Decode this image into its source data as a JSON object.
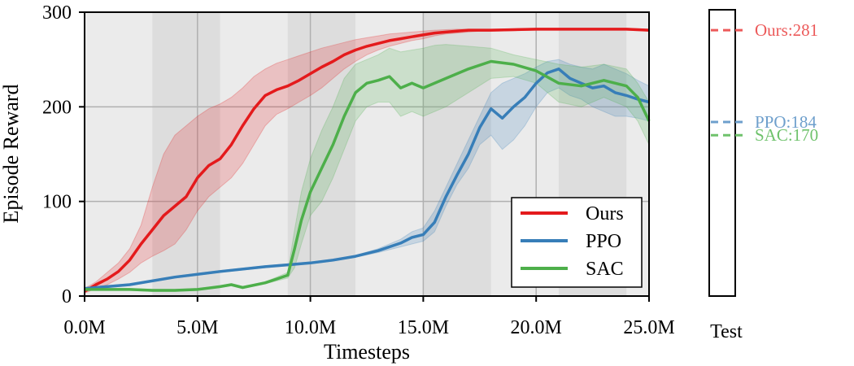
{
  "chart_data": {
    "type": "line",
    "xlabel": "Timesteps",
    "ylabel": "Episode Reward",
    "xlim": [
      0,
      25
    ],
    "ylim": [
      0,
      300
    ],
    "x_ticks": [
      0,
      5,
      10,
      15,
      20,
      25
    ],
    "x_tick_labels": [
      "0.0M",
      "5.0M",
      "10.0M",
      "15.0M",
      "20.0M",
      "25.0M"
    ],
    "y_ticks": [
      0,
      100,
      200,
      300
    ],
    "y_tick_labels": [
      "0",
      "100",
      "200",
      "300"
    ],
    "grid": true,
    "legend_position": "lower-right",
    "shaded_x_bands": [
      [
        3,
        6
      ],
      [
        9,
        12
      ],
      [
        15,
        18
      ],
      [
        21,
        24
      ]
    ],
    "series": [
      {
        "name": "Ours",
        "color": "#e41a1c",
        "x": [
          0,
          0.5,
          1,
          1.5,
          2,
          2.5,
          3,
          3.5,
          4,
          4.5,
          5,
          5.5,
          6,
          6.5,
          7,
          7.5,
          8,
          8.5,
          9,
          9.5,
          10,
          10.5,
          11,
          11.5,
          12,
          12.5,
          13,
          13.5,
          14,
          14.5,
          15,
          15.5,
          16,
          16.5,
          17,
          17.5,
          18,
          19,
          20,
          21,
          22,
          23,
          24,
          25
        ],
        "mean": [
          5,
          12,
          18,
          26,
          38,
          55,
          70,
          85,
          95,
          105,
          125,
          138,
          145,
          160,
          180,
          198,
          212,
          218,
          222,
          228,
          235,
          242,
          248,
          255,
          260,
          264,
          267,
          270,
          272,
          274,
          276,
          278,
          279,
          280,
          281,
          281,
          281,
          281.5,
          282,
          282,
          282,
          282,
          282,
          281
        ],
        "upper": [
          8,
          15,
          25,
          35,
          50,
          75,
          115,
          150,
          170,
          180,
          190,
          198,
          203,
          210,
          220,
          232,
          240,
          246,
          250,
          254,
          258,
          262,
          265,
          268,
          271,
          273,
          275,
          277,
          278,
          279,
          280,
          281,
          281.5,
          282,
          282,
          282,
          282,
          282.5,
          283,
          283,
          283,
          283,
          283,
          282
        ],
        "lower": [
          3,
          8,
          12,
          18,
          25,
          35,
          42,
          48,
          55,
          70,
          90,
          105,
          115,
          125,
          140,
          160,
          180,
          192,
          198,
          205,
          212,
          220,
          230,
          240,
          248,
          255,
          260,
          264,
          267,
          270,
          272,
          275,
          277,
          278,
          279,
          280,
          280,
          280.5,
          281,
          281,
          281,
          281,
          281,
          280
        ]
      },
      {
        "name": "PPO",
        "color": "#377eb8",
        "x": [
          0,
          2,
          4,
          6,
          8,
          9,
          10,
          11,
          12,
          13,
          14,
          14.5,
          15,
          15.5,
          16,
          16.5,
          17,
          17.5,
          18,
          18.5,
          19,
          19.5,
          20,
          20.5,
          21,
          21.5,
          22,
          22.5,
          23,
          23.5,
          24,
          24.5,
          25
        ],
        "mean": [
          8,
          12,
          20,
          26,
          31,
          33,
          35,
          38,
          42,
          48,
          56,
          62,
          65,
          78,
          105,
          128,
          150,
          178,
          198,
          188,
          200,
          210,
          225,
          236,
          240,
          230,
          225,
          220,
          222,
          215,
          212,
          208,
          205
        ],
        "upper": [
          9,
          13,
          21,
          27,
          32,
          34,
          36,
          39,
          43,
          50,
          60,
          68,
          72,
          90,
          115,
          140,
          165,
          190,
          215,
          225,
          230,
          235,
          242,
          248,
          250,
          245,
          242,
          240,
          245,
          240,
          235,
          228,
          222
        ],
        "lower": [
          7,
          11,
          19,
          25,
          30,
          32,
          34,
          37,
          41,
          46,
          52,
          55,
          58,
          68,
          95,
          118,
          135,
          160,
          170,
          155,
          165,
          180,
          200,
          215,
          220,
          212,
          208,
          200,
          195,
          190,
          190,
          188,
          185
        ]
      },
      {
        "name": "SAC",
        "color": "#4daf4a",
        "x": [
          0,
          1,
          2,
          3,
          4,
          5,
          6,
          6.5,
          7,
          8,
          8.5,
          9,
          9.3,
          9.6,
          10,
          10.5,
          11,
          11.5,
          12,
          12.5,
          13,
          13.5,
          14,
          14.5,
          15,
          15.5,
          16,
          17,
          18,
          19,
          20,
          21,
          22,
          23,
          24,
          24.5,
          25
        ],
        "mean": [
          7,
          7,
          7,
          6,
          6,
          7,
          10,
          12,
          9,
          14,
          18,
          22,
          50,
          80,
          110,
          135,
          160,
          190,
          215,
          225,
          228,
          232,
          220,
          225,
          220,
          225,
          230,
          240,
          248,
          245,
          238,
          225,
          222,
          228,
          222,
          210,
          185
        ],
        "upper": [
          8,
          8,
          8,
          7,
          7,
          8,
          11,
          13,
          10,
          15,
          20,
          25,
          70,
          110,
          145,
          175,
          200,
          230,
          245,
          250,
          255,
          262,
          258,
          260,
          262,
          265,
          266,
          264,
          262,
          255,
          250,
          245,
          242,
          245,
          240,
          225,
          205
        ],
        "lower": [
          6,
          6,
          6,
          5,
          5,
          6,
          9,
          11,
          8,
          13,
          16,
          19,
          30,
          55,
          85,
          100,
          125,
          155,
          185,
          200,
          205,
          205,
          190,
          195,
          190,
          195,
          200,
          215,
          230,
          232,
          225,
          205,
          200,
          210,
          200,
          185,
          160
        ]
      }
    ],
    "test": {
      "label": "Test",
      "entries": [
        {
          "name": "Ours",
          "value": 281,
          "text": "Ours:281",
          "color": "#ec5a5a"
        },
        {
          "name": "PPO",
          "value": 184,
          "text": "PPO:184",
          "color": "#6e9fcc"
        },
        {
          "name": "SAC",
          "value": 170,
          "text": "SAC:170",
          "color": "#6fc26c"
        }
      ]
    }
  }
}
